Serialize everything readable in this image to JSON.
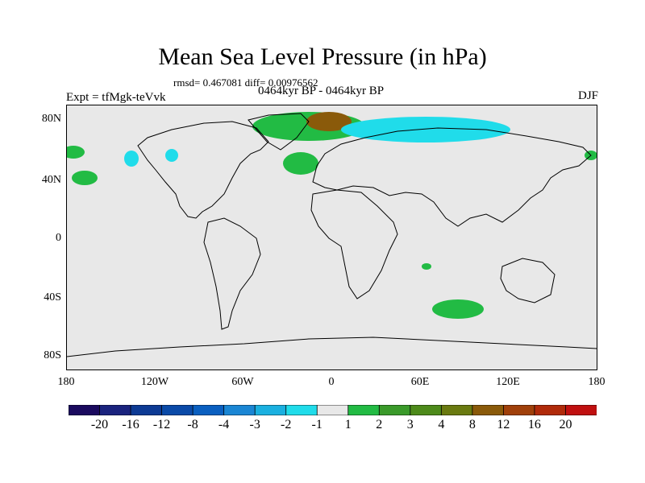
{
  "title": "Mean Sea Level Pressure (in hPa)",
  "stats": "rmsd= 0.467081 diff= 0.00976562",
  "experiment": "Expt = tfMgk-teVvk",
  "period": "0464kyr BP - 0464kyr BP",
  "season": "DJF",
  "lat_labels": [
    "80N",
    "40N",
    "0",
    "40S",
    "80S"
  ],
  "lon_labels": [
    "180",
    "120W",
    "60W",
    "0",
    "60E",
    "120E",
    "180"
  ],
  "colorbar": {
    "labels": [
      "-20",
      "-16",
      "-12",
      "-8",
      "-4",
      "-3",
      "-2",
      "-1",
      "1",
      "2",
      "3",
      "4",
      "8",
      "12",
      "16",
      "20"
    ],
    "colors": [
      "#1a0a5e",
      "#1a237e",
      "#0d3a94",
      "#0a4aa8",
      "#0a5fc0",
      "#1a86d4",
      "#1ab0e0",
      "#20dcea",
      "#e8e8e8",
      "#22bb44",
      "#3a9a2a",
      "#4d8a1a",
      "#6a7a10",
      "#8a5a0a",
      "#a0400a",
      "#b02a0a",
      "#c01010"
    ]
  },
  "colors": {
    "ocean": "#e8e8e8",
    "positive_anomaly": "#22bb44",
    "strong_positive_anomaly": "#8a5a0a",
    "negative_anomaly": "#20dcea"
  }
}
